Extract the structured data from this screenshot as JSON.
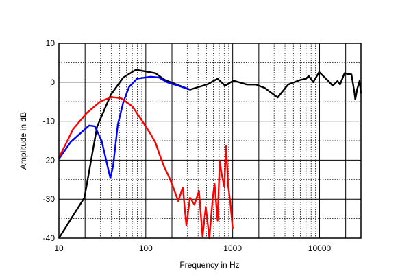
{
  "chart_data": {
    "type": "line",
    "title": "",
    "xlabel": "Frequency in Hz",
    "ylabel": "Amplitude in dB",
    "xscale": "log",
    "xlim": [
      10,
      30000
    ],
    "ylim": [
      -40,
      10
    ],
    "xticks": [
      10,
      100,
      1000,
      10000
    ],
    "xtick_labels": [
      "10",
      "100",
      "1000",
      "10000"
    ],
    "yticks": [
      10,
      0,
      -10,
      -20,
      -30,
      -40
    ],
    "ytick_labels": [
      "10",
      "0",
      "-10",
      "-20",
      "-30",
      "-40"
    ],
    "grid": true,
    "series": [
      {
        "name": "black",
        "color": "#000000",
        "points": [
          [
            10,
            -40
          ],
          [
            19.7,
            -29.6
          ],
          [
            27.5,
            -11.4
          ],
          [
            39.6,
            -3.2
          ],
          [
            55,
            1.2
          ],
          [
            77,
            3.2
          ],
          [
            129,
            2.3
          ],
          [
            165,
            0.6
          ],
          [
            323,
            -1.9
          ],
          [
            520,
            -0.5
          ],
          [
            670,
            0.9
          ],
          [
            820,
            -0.9
          ],
          [
            1020,
            0.4
          ],
          [
            1460,
            -0.6
          ],
          [
            1860,
            -0.6
          ],
          [
            2350,
            -1.5
          ],
          [
            3300,
            -3.9
          ],
          [
            4350,
            -0.6
          ],
          [
            6040,
            0.6
          ],
          [
            7000,
            0.9
          ],
          [
            7500,
            1.6
          ],
          [
            8470,
            0
          ],
          [
            9900,
            2.6
          ],
          [
            11500,
            1.2
          ],
          [
            14200,
            -0.9
          ],
          [
            16100,
            0.3
          ],
          [
            17200,
            -0.6
          ],
          [
            19400,
            2.3
          ],
          [
            21300,
            2.1
          ],
          [
            23300,
            2
          ],
          [
            25200,
            -2.6
          ],
          [
            25800,
            -4.4
          ],
          [
            27100,
            -1.8
          ],
          [
            28900,
            0.3
          ],
          [
            30000,
            -2.9
          ]
        ]
      },
      {
        "name": "blue",
        "color": "#0000ff",
        "points": [
          [
            10,
            -19.7
          ],
          [
            13.7,
            -15.3
          ],
          [
            22.3,
            -11.1
          ],
          [
            25.9,
            -11.3
          ],
          [
            31,
            -15
          ],
          [
            37.2,
            -22.6
          ],
          [
            39.1,
            -24.6
          ],
          [
            42.1,
            -21.4
          ],
          [
            47.6,
            -10.9
          ],
          [
            55.3,
            -5
          ],
          [
            64.3,
            -1.2
          ],
          [
            79.4,
            0.9
          ],
          [
            114,
            1.4
          ],
          [
            142,
            1.2
          ],
          [
            175,
            0
          ],
          [
            236,
            -0.9
          ],
          [
            323,
            -1.9
          ]
        ]
      },
      {
        "name": "red",
        "color": "#ff0000",
        "points": [
          [
            10,
            -19.4
          ],
          [
            14.6,
            -12
          ],
          [
            20.9,
            -7.9
          ],
          [
            30.2,
            -4.9
          ],
          [
            40.7,
            -3.8
          ],
          [
            52,
            -4.1
          ],
          [
            70,
            -6.2
          ],
          [
            89.5,
            -9.7
          ],
          [
            113,
            -13.2
          ],
          [
            129,
            -15.5
          ],
          [
            150,
            -19.7
          ],
          [
            165,
            -22
          ],
          [
            181,
            -23.8
          ],
          [
            205,
            -26.7
          ],
          [
            236,
            -30.5
          ],
          [
            267,
            -27
          ],
          [
            293,
            -36.7
          ],
          [
            323,
            -29.6
          ],
          [
            363,
            -31.4
          ],
          [
            410,
            -27.9
          ],
          [
            450,
            -39.6
          ],
          [
            490,
            -32
          ],
          [
            540,
            -40
          ],
          [
            590,
            -29.6
          ],
          [
            620,
            -26.1
          ],
          [
            670,
            -35.5
          ],
          [
            710,
            -20.2
          ],
          [
            750,
            -23.8
          ],
          [
            800,
            -26.7
          ],
          [
            840,
            -16.4
          ],
          [
            890,
            -26.7
          ],
          [
            940,
            -30.8
          ],
          [
            1000,
            -37.6
          ]
        ]
      }
    ]
  }
}
